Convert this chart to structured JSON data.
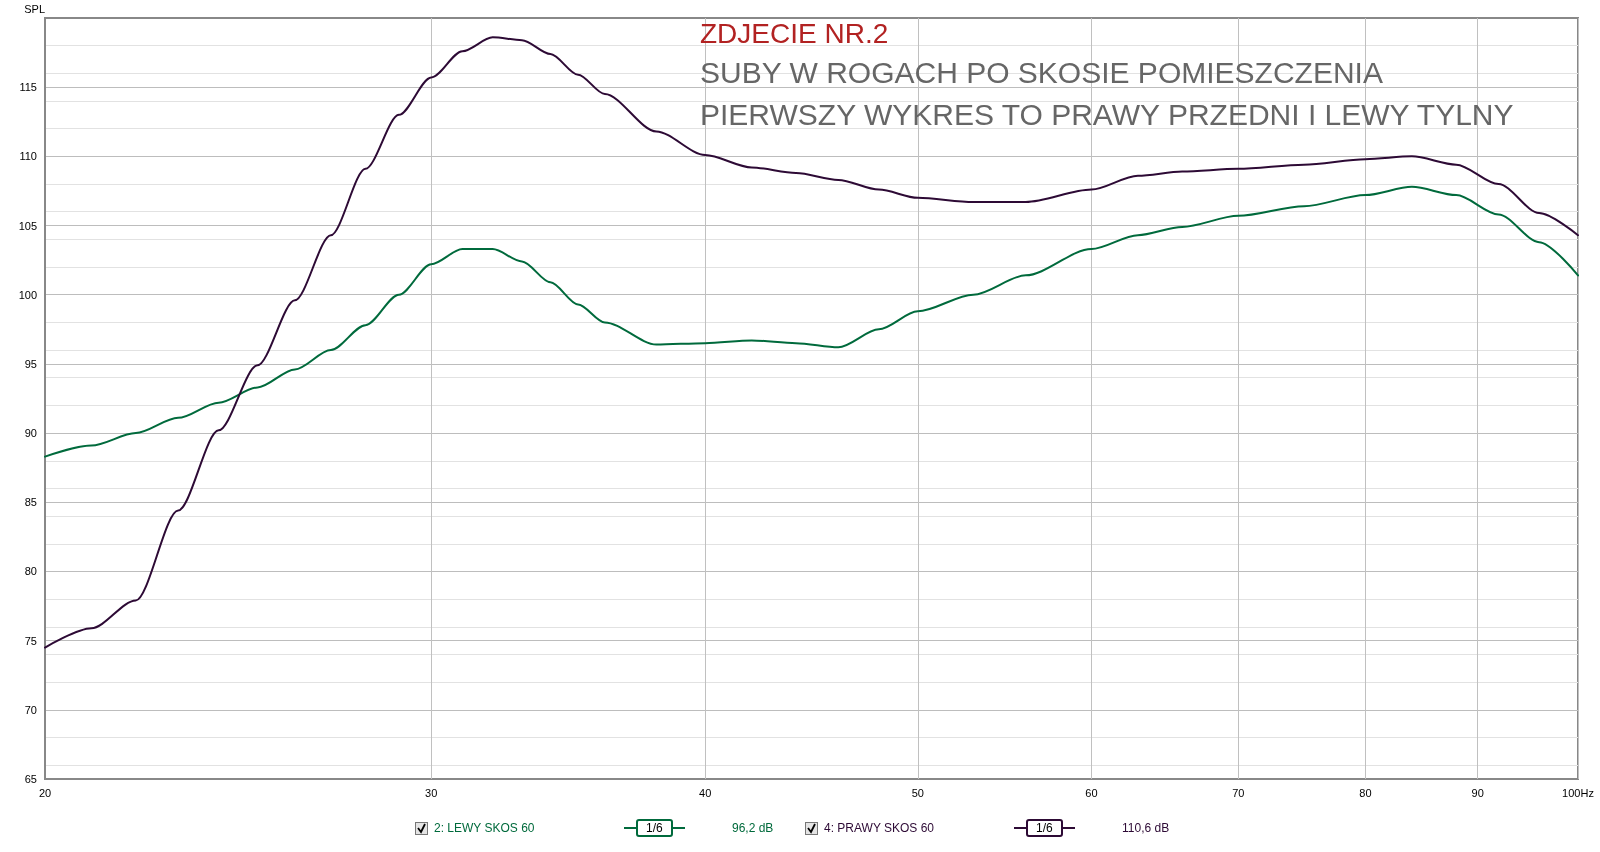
{
  "chart_data": {
    "type": "line",
    "title": "ZDJECIE NR.2",
    "subtitle": "SUBY W ROGACH PO SKOSIE POMIESZCZENIA\nPIERWSZY WYKRES TO PRAWY PRZEDNI I LEWY TYLNY",
    "ylabel": "SPL",
    "x": [
      20,
      21,
      22,
      23,
      24,
      25,
      26,
      27,
      28,
      29,
      30,
      31,
      32,
      33,
      34,
      35,
      36,
      38,
      40,
      42,
      44,
      46,
      48,
      50,
      53,
      56,
      60,
      63,
      66,
      70,
      75,
      80,
      84,
      88,
      92,
      96,
      100
    ],
    "series": [
      {
        "name": "2: LEWY SKOS 60",
        "color": "#006a3c",
        "values": [
          88.3,
          89.1,
          90.0,
          91.1,
          92.2,
          93.3,
          94.6,
          96.0,
          97.8,
          100.0,
          102.2,
          103.3,
          103.3,
          102.4,
          100.9,
          99.3,
          98.0,
          96.4,
          96.5,
          96.7,
          96.5,
          96.2,
          97.5,
          98.8,
          100.0,
          101.4,
          103.3,
          104.3,
          104.9,
          105.7,
          106.4,
          107.2,
          107.8,
          107.2,
          105.8,
          103.8,
          101.4
        ]
      },
      {
        "name": "4: PRAWY SKOS 60",
        "color": "#2d0a35",
        "values": [
          74.5,
          75.9,
          77.9,
          84.4,
          90.2,
          94.9,
          99.6,
          104.3,
          109.1,
          113.0,
          115.7,
          117.6,
          118.6,
          118.4,
          117.4,
          115.9,
          114.5,
          111.8,
          110.1,
          109.2,
          108.8,
          108.3,
          107.6,
          107.0,
          106.7,
          106.7,
          107.6,
          108.6,
          108.9,
          109.1,
          109.4,
          109.8,
          110.0,
          109.4,
          108.0,
          105.9,
          104.3
        ]
      }
    ],
    "annotations": [
      "1/6",
      "96,2 dB",
      "1/6",
      "110,6 dB"
    ],
    "log": "x",
    "xlim": [
      20,
      100
    ],
    "xticks": [
      20,
      30,
      40,
      50,
      60,
      70,
      80,
      90,
      {
        "value": 100,
        "label": "100Hz"
      }
    ],
    "ylim": [
      65,
      120
    ],
    "yticks": [
      65,
      70,
      75,
      80,
      85,
      90,
      95,
      100,
      105,
      110,
      115
    ],
    "grid": true,
    "legend": "bottom",
    "marker": "none",
    "line_style": "solid"
  }
}
